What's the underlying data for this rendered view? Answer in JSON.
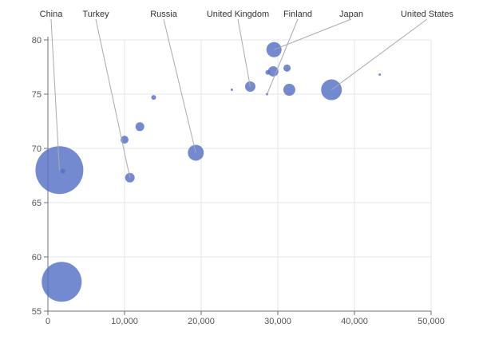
{
  "chart_data": {
    "type": "scatter",
    "title": "",
    "xlabel": "",
    "ylabel": "",
    "xlim": [
      0,
      50000
    ],
    "ylim": [
      55,
      80
    ],
    "x_ticks": [
      0,
      10000,
      20000,
      30000,
      40000,
      50000
    ],
    "x_tick_labels": [
      "0",
      "10,000",
      "20,000",
      "30,000",
      "40,000",
      "50,000"
    ],
    "y_ticks": [
      55,
      60,
      65,
      70,
      75,
      80
    ],
    "y_tick_labels": [
      "55",
      "60",
      "65",
      "70",
      "75",
      "80"
    ],
    "grid": true,
    "color": "#5470c6",
    "points": [
      {
        "x": 1500,
        "y": 68.0,
        "size": 30,
        "label": "China",
        "label_text_x": 64
      },
      {
        "x": 1950,
        "y": 67.9,
        "size": 3
      },
      {
        "x": 1800,
        "y": 57.7,
        "size": 25
      },
      {
        "x": 10700,
        "y": 67.3,
        "size": 6,
        "label": "Turkey",
        "label_text_x": 120
      },
      {
        "x": 10000,
        "y": 70.8,
        "size": 5
      },
      {
        "x": 12000,
        "y": 72.0,
        "size": 5.5
      },
      {
        "x": 13800,
        "y": 74.7,
        "size": 3
      },
      {
        "x": 19300,
        "y": 69.6,
        "size": 10,
        "label": "Russia",
        "label_text_x": 205
      },
      {
        "x": 24000,
        "y": 75.4,
        "size": 1.5
      },
      {
        "x": 26400,
        "y": 75.7,
        "size": 6.5,
        "label": "United Kingdom",
        "label_text_x": 298
      },
      {
        "x": 28600,
        "y": 75.0,
        "size": 1.5,
        "label": "Finland",
        "label_text_x": 373
      },
      {
        "x": 28700,
        "y": 77.0,
        "size": 3
      },
      {
        "x": 29400,
        "y": 77.1,
        "size": 6.5
      },
      {
        "x": 29500,
        "y": 79.1,
        "size": 9.5,
        "label": "Japan",
        "label_text_x": 440
      },
      {
        "x": 31200,
        "y": 77.4,
        "size": 4.5
      },
      {
        "x": 31500,
        "y": 75.4,
        "size": 7.5
      },
      {
        "x": 37000,
        "y": 75.4,
        "size": 13,
        "label": "United States",
        "label_text_x": 535
      },
      {
        "x": 43300,
        "y": 76.8,
        "size": 1.5
      }
    ]
  }
}
